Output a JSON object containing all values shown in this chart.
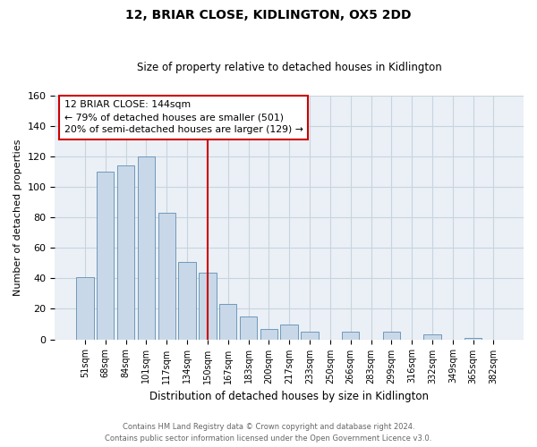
{
  "title": "12, BRIAR CLOSE, KIDLINGTON, OX5 2DD",
  "subtitle": "Size of property relative to detached houses in Kidlington",
  "xlabel": "Distribution of detached houses by size in Kidlington",
  "ylabel": "Number of detached properties",
  "bar_labels": [
    "51sqm",
    "68sqm",
    "84sqm",
    "101sqm",
    "117sqm",
    "134sqm",
    "150sqm",
    "167sqm",
    "183sqm",
    "200sqm",
    "217sqm",
    "233sqm",
    "250sqm",
    "266sqm",
    "283sqm",
    "299sqm",
    "316sqm",
    "332sqm",
    "349sqm",
    "365sqm",
    "382sqm"
  ],
  "bar_values": [
    41,
    110,
    114,
    120,
    83,
    51,
    44,
    23,
    15,
    7,
    10,
    5,
    0,
    5,
    0,
    5,
    0,
    3,
    0,
    1,
    0
  ],
  "bar_color": "#c8d8e8",
  "bar_edge_color": "#7099bb",
  "vline_x_index": 6,
  "vline_color": "#cc0000",
  "ylim": [
    0,
    160
  ],
  "yticks": [
    0,
    20,
    40,
    60,
    80,
    100,
    120,
    140,
    160
  ],
  "annotation_title": "12 BRIAR CLOSE: 144sqm",
  "annotation_line1": "← 79% of detached houses are smaller (501)",
  "annotation_line2": "20% of semi-detached houses are larger (129) →",
  "annotation_box_color": "#ffffff",
  "annotation_box_edge": "#cc0000",
  "footer_line1": "Contains HM Land Registry data © Crown copyright and database right 2024.",
  "footer_line2": "Contains public sector information licensed under the Open Government Licence v3.0.",
  "background_color": "#ffffff",
  "axes_facecolor": "#eaf0f6",
  "grid_color": "#c8d4de"
}
